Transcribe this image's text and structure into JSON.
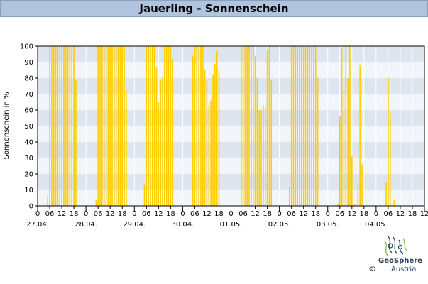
{
  "header": {
    "title": "Jauerling - Sonnenschein"
  },
  "chart_data": {
    "type": "bar",
    "title": "Jauerling - Sonnenschein",
    "ylabel": "Sonnenschein in %",
    "xlabel": "",
    "ylim": [
      0,
      100
    ],
    "yticks": [
      0,
      10,
      20,
      30,
      40,
      50,
      60,
      70,
      80,
      90,
      100
    ],
    "xlim_hours": [
      0,
      192
    ],
    "hour_tick_labels": [
      "0",
      "06",
      "12",
      "18"
    ],
    "final_hour_label": "12",
    "day_labels": [
      "27.04.",
      "28.04.",
      "29.04.",
      "30.04.",
      "01.05.",
      "02.05.",
      "03.05.",
      "04.05."
    ],
    "grid": true,
    "bar_color": "#ffcc00",
    "days": [
      {
        "date": "27.04.",
        "start_hour": 5,
        "values": [
          7,
          100,
          100,
          100,
          100,
          100,
          100,
          100,
          100,
          100,
          100,
          100,
          100,
          100,
          79
        ]
      },
      {
        "date": "28.04.",
        "start_hour": 5,
        "values": [
          4,
          100,
          100,
          100,
          100,
          100,
          100,
          100,
          100,
          100,
          100,
          100,
          100,
          100,
          100,
          72
        ]
      },
      {
        "date": "29.04.",
        "start_hour": 5,
        "values": [
          13,
          100,
          100,
          100,
          100,
          100,
          87,
          65,
          79,
          81,
          100,
          100,
          100,
          100,
          92
        ]
      },
      {
        "date": "30.04.",
        "start_hour": 5,
        "values": [
          94,
          100,
          100,
          100,
          100,
          100,
          85,
          78,
          63,
          66,
          82,
          89,
          97,
          85
        ]
      },
      {
        "date": "01.05.",
        "start_hour": 5,
        "values": [
          100,
          100,
          100,
          100,
          100,
          100,
          100,
          94,
          80,
          60,
          60,
          63,
          62,
          98,
          100,
          79
        ]
      },
      {
        "date": "02.05.",
        "start_hour": 5,
        "values": [
          12,
          100,
          100,
          100,
          100,
          100,
          100,
          100,
          100,
          100,
          100,
          100,
          100,
          100,
          80
        ]
      },
      {
        "date": "03.05.",
        "start_hour": 5,
        "values": [
          1,
          56,
          99,
          72,
          100,
          80,
          100,
          31,
          1,
          1,
          14,
          88,
          26
        ]
      },
      {
        "date": "04.05.",
        "start_hour": 5,
        "values": [
          15,
          81,
          58,
          0,
          4
        ]
      }
    ]
  },
  "logo": {
    "name": "GeoSphere",
    "sub": "Austria",
    "copyright": "©"
  }
}
